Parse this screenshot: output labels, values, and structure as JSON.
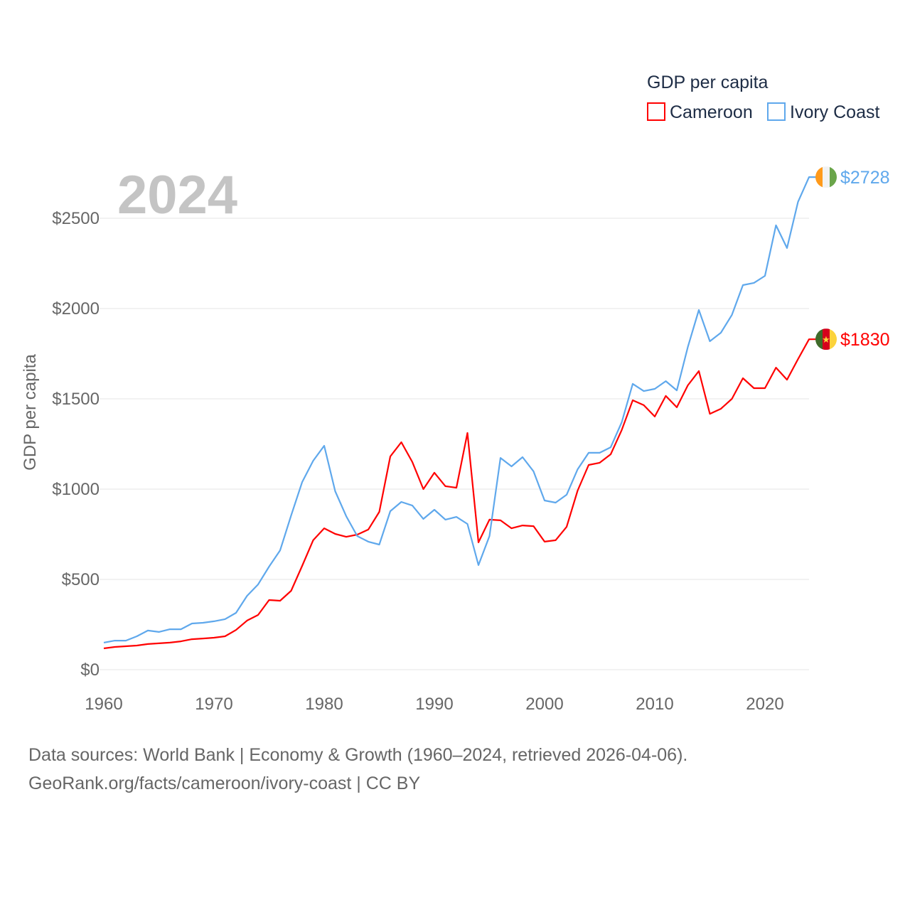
{
  "chart_data": {
    "type": "line",
    "title": "GDP per capita",
    "ylabel": "GDP per capita",
    "xlabel": "",
    "year_label": "2024",
    "xlim": [
      1960,
      2024
    ],
    "ylim": [
      0,
      2800
    ],
    "x_ticks": [
      1960,
      1970,
      1980,
      1990,
      2000,
      2010,
      2020
    ],
    "x_tick_labels": [
      "1960",
      "1970",
      "1980",
      "1990",
      "2000",
      "2010",
      "2020"
    ],
    "y_ticks": [
      0,
      500,
      1000,
      1500,
      2000,
      2500
    ],
    "y_tick_labels": [
      "$0",
      "$500",
      "$1000",
      "$1500",
      "$2000",
      "$2500"
    ],
    "grid": true,
    "legend_position": "top-right",
    "x": [
      1960,
      1961,
      1962,
      1963,
      1964,
      1965,
      1966,
      1967,
      1968,
      1969,
      1970,
      1971,
      1972,
      1973,
      1974,
      1975,
      1976,
      1977,
      1978,
      1979,
      1980,
      1981,
      1982,
      1983,
      1984,
      1985,
      1986,
      1987,
      1988,
      1989,
      1990,
      1991,
      1992,
      1993,
      1994,
      1995,
      1996,
      1997,
      1998,
      1999,
      2000,
      2001,
      2002,
      2003,
      2004,
      2005,
      2006,
      2007,
      2008,
      2009,
      2010,
      2011,
      2012,
      2013,
      2014,
      2015,
      2016,
      2017,
      2018,
      2019,
      2020,
      2021,
      2022,
      2023,
      2024
    ],
    "series": [
      {
        "name": "Cameroon",
        "color": "#ff0000",
        "end_label": "$1830",
        "flag": "cameroon-flag",
        "values": [
          118,
          126,
          130,
          134,
          142,
          146,
          150,
          157,
          169,
          173,
          177,
          185,
          220,
          272,
          303,
          386,
          382,
          437,
          575,
          717,
          783,
          752,
          736,
          748,
          776,
          874,
          1181,
          1260,
          1150,
          1000,
          1091,
          1016,
          1008,
          1311,
          705,
          831,
          827,
          783,
          799,
          795,
          709,
          717,
          791,
          992,
          1134,
          1146,
          1193,
          1327,
          1492,
          1465,
          1402,
          1516,
          1453,
          1575,
          1654,
          1417,
          1445,
          1500,
          1614,
          1559,
          1559,
          1673,
          1606,
          1720,
          1830
        ]
      },
      {
        "name": "Ivory Coast",
        "color": "#5fa8ec",
        "end_label": "$2728",
        "flag": "ivory-coast-flag",
        "values": [
          150,
          161,
          161,
          185,
          217,
          209,
          224,
          224,
          256,
          260,
          268,
          280,
          315,
          409,
          472,
          571,
          661,
          854,
          1039,
          1157,
          1240,
          988,
          850,
          740,
          709,
          693,
          878,
          929,
          909,
          835,
          886,
          831,
          846,
          807,
          579,
          740,
          1173,
          1126,
          1177,
          1098,
          937,
          925,
          969,
          1110,
          1201,
          1201,
          1232,
          1370,
          1583,
          1543,
          1555,
          1598,
          1547,
          1787,
          1992,
          1819,
          1866,
          1965,
          2130,
          2142,
          2181,
          2461,
          2335,
          2591,
          2728
        ]
      }
    ]
  },
  "footer": {
    "line1": "Data sources: World Bank | Economy & Growth (1960–2024, retrieved 2026-04-06).",
    "line2": "GeoRank.org/facts/cameroon/ivory-coast | CC BY"
  }
}
